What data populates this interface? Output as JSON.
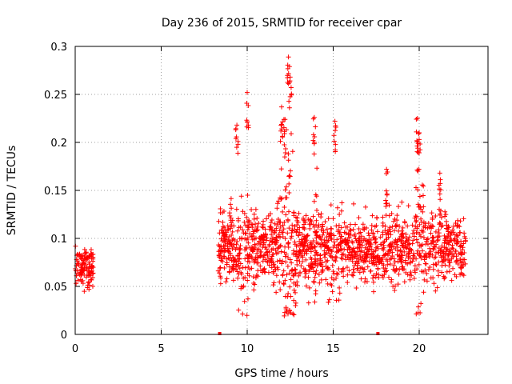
{
  "chart_data": {
    "type": "scatter",
    "title": "Day 236 of 2015, SRMTID for receiver cpar",
    "xlabel": "GPS time / hours",
    "ylabel": "SRMTID / TECUs",
    "xlim": [
      0,
      24
    ],
    "ylim": [
      0,
      0.3
    ],
    "xticks": [
      0,
      5,
      10,
      15,
      20
    ],
    "yticks": [
      0,
      0.05,
      0.1,
      0.15,
      0.2,
      0.25,
      0.3
    ],
    "ytick_labels": [
      "0",
      "0.05",
      "0.1",
      "0.15",
      "0.2",
      "0.25",
      "0.3"
    ],
    "grid": true,
    "marker": "plus",
    "color": "#ff0000",
    "series": [
      {
        "name": "SRMTID",
        "segments": [
          {
            "x_start": 0.0,
            "x_end": 1.05,
            "baseline": 0.07,
            "spread": 0.018,
            "count": 120
          },
          {
            "x_start": 8.3,
            "x_end": 22.7,
            "baseline": 0.09,
            "spread": 0.03,
            "count": 1600
          }
        ],
        "peaks": [
          {
            "x": 10.0,
            "y": 0.252
          },
          {
            "x": 9.4,
            "y": 0.218
          },
          {
            "x": 12.0,
            "y": 0.237
          },
          {
            "x": 12.4,
            "y": 0.289
          },
          {
            "x": 12.5,
            "y": 0.268
          },
          {
            "x": 12.2,
            "y": 0.224
          },
          {
            "x": 13.9,
            "y": 0.226
          },
          {
            "x": 15.1,
            "y": 0.222
          },
          {
            "x": 19.9,
            "y": 0.225
          },
          {
            "x": 20.0,
            "y": 0.21
          },
          {
            "x": 18.1,
            "y": 0.172
          },
          {
            "x": 21.2,
            "y": 0.168
          }
        ],
        "zero_points": [
          {
            "x": 8.4,
            "y": 0.0
          },
          {
            "x": 17.6,
            "y": 0.0
          }
        ]
      }
    ]
  }
}
